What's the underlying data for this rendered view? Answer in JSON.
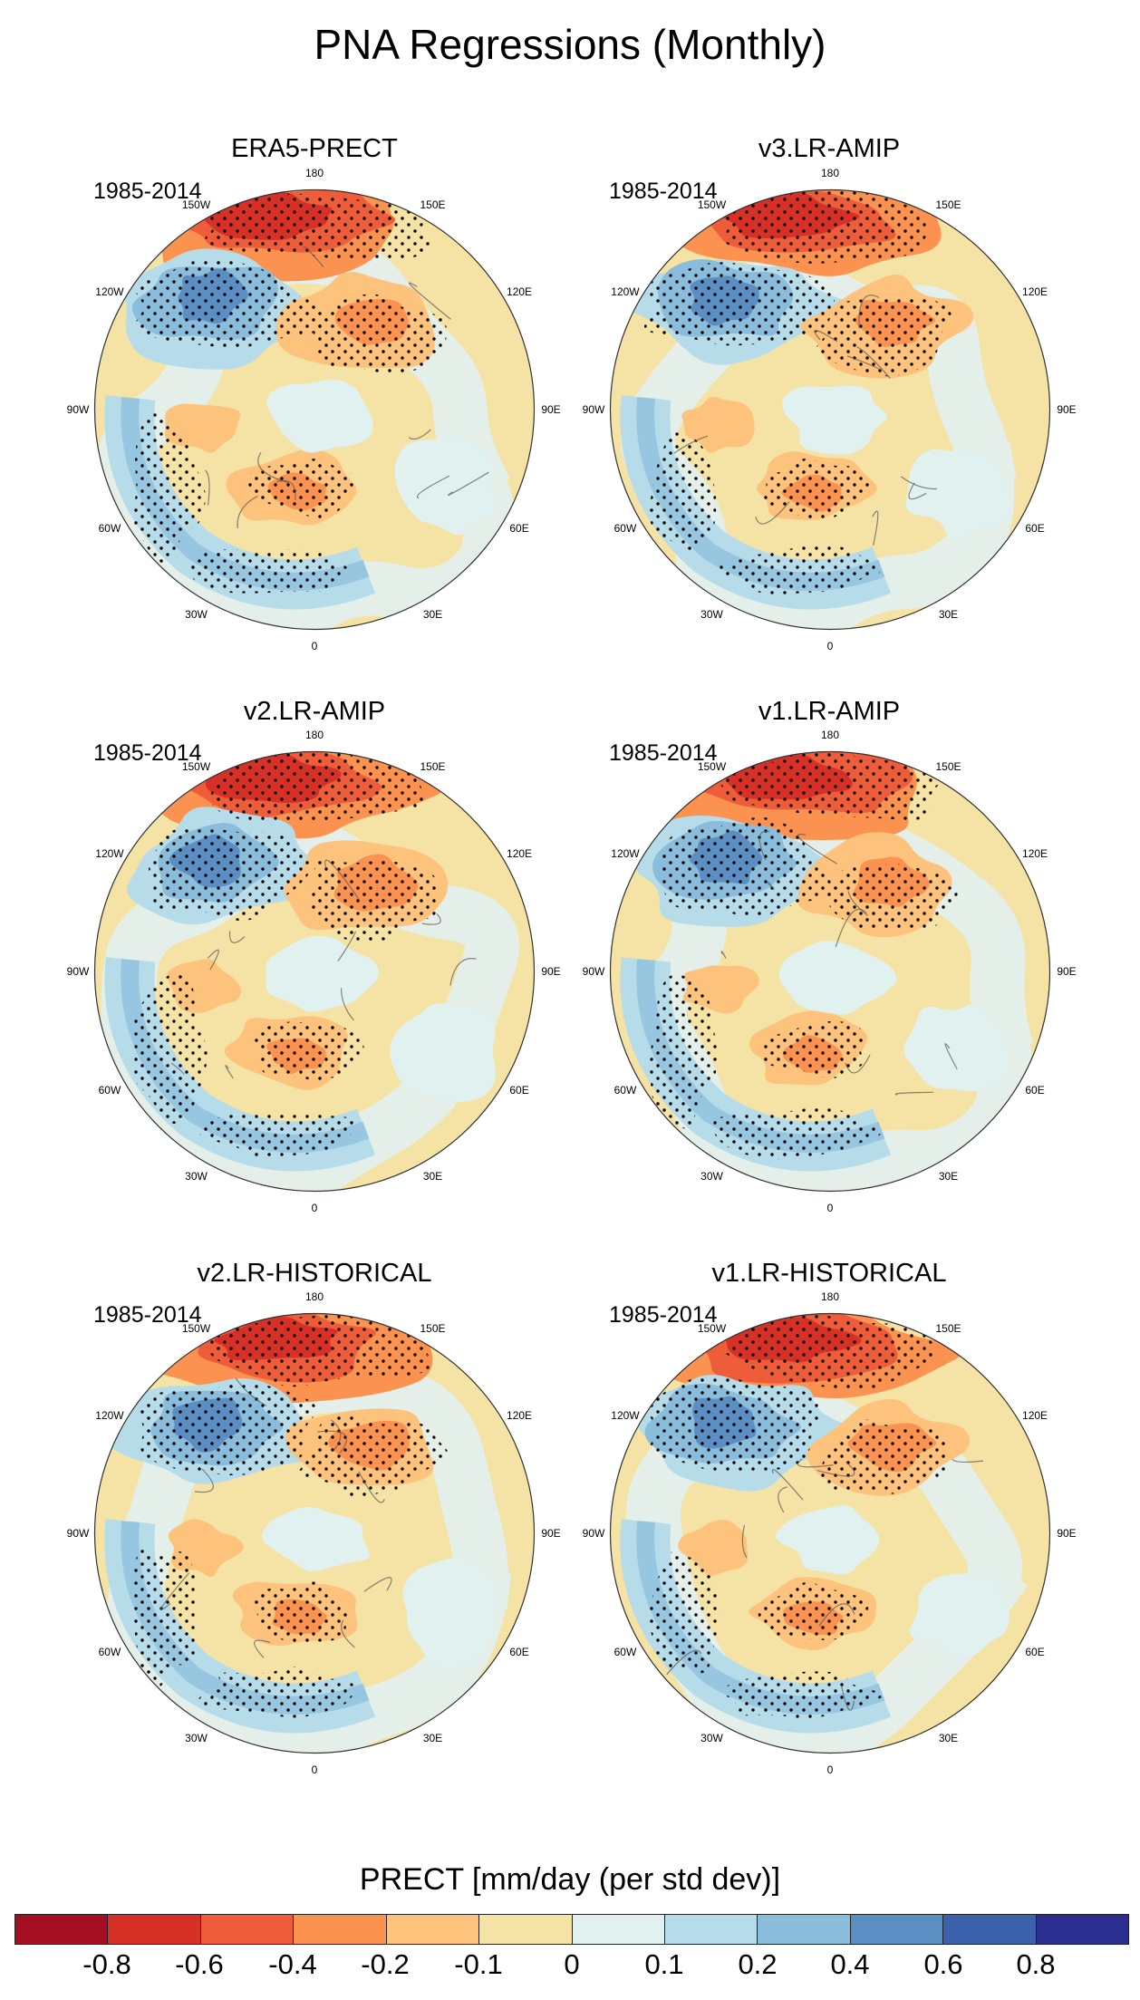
{
  "title": "PNA Regressions (Monthly)",
  "period": "1985-2014",
  "lon_labels": [
    "180",
    "150E",
    "120E",
    "90E",
    "60E",
    "30E",
    "0",
    "30W",
    "60W",
    "90W",
    "120W",
    "150W"
  ],
  "panels": [
    {
      "name": "ERA5-PRECT"
    },
    {
      "name": "v3.LR-AMIP"
    },
    {
      "name": "v2.LR-AMIP"
    },
    {
      "name": "v1.LR-AMIP"
    },
    {
      "name": "v2.LR-HISTORICAL"
    },
    {
      "name": "v1.LR-HISTORICAL"
    }
  ],
  "colorbar": {
    "title": "PRECT [mm/day (per std dev)]",
    "ticks": [
      "-0.8",
      "-0.6",
      "-0.4",
      "-0.2",
      "-0.1",
      "0",
      "0.1",
      "0.2",
      "0.4",
      "0.6",
      "0.8"
    ],
    "colors": [
      "#a50f24",
      "#d73027",
      "#ee5c3a",
      "#fb9250",
      "#fdc27b",
      "#f5e2a5",
      "#e1f1ef",
      "#b6dcea",
      "#8abcdb",
      "#5b8fc4",
      "#3c62ad",
      "#2c2e8f"
    ]
  }
}
